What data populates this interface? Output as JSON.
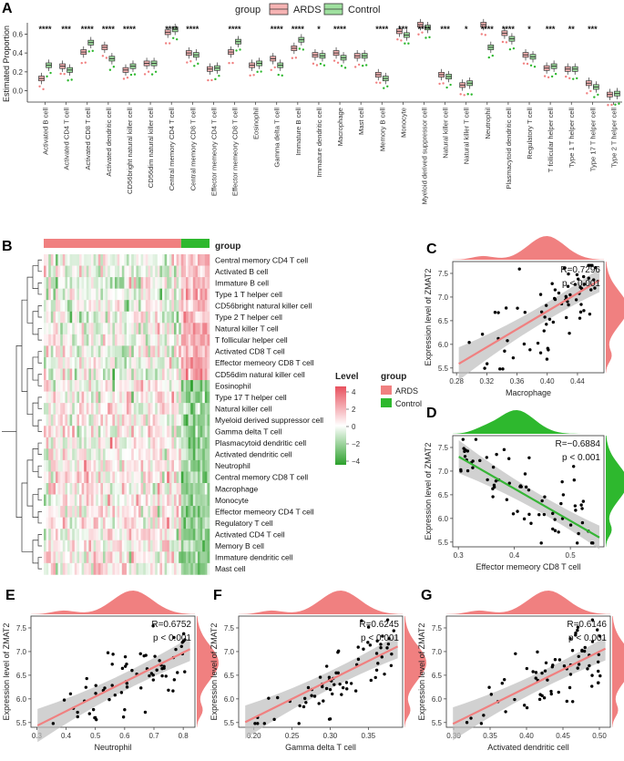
{
  "colors": {
    "ards": "#f08080",
    "control": "#2eb82e",
    "heat_high": "#e8515e",
    "heat_mid": "#ffffff",
    "heat_low": "#2ca02c",
    "box_ards_fill": "#f6b3b3",
    "box_control_fill": "#9fe09f",
    "line": "#f08080",
    "line_d": "#36b536",
    "band": "#bdbdbd"
  },
  "panelA": {
    "label": "A",
    "legend_title": "group",
    "legend_items": [
      "ARDS",
      "Control"
    ],
    "ylabel": "Estimated Proportion",
    "yticks": [
      "0.0",
      "0.2",
      "0.4",
      "0.6"
    ],
    "ylim": [
      -0.12,
      0.72
    ],
    "grid": false,
    "chart_data": {
      "type": "box",
      "categories": [
        "Activated B cell",
        "Activated CD4 T cell",
        "Activated CD8 T cell",
        "Activated dendritic cell",
        "CD56bright natural killer cell",
        "CD56dim natural killer cell",
        "Central memory CD4 T cell",
        "Central memory CD8 T cell",
        "Effector memeory CD4 T cell",
        "Effector memeory CD8 T cell",
        "Eosinophil",
        "Gamma delta T cell",
        "Immature  B cell",
        "Immature dendritic cell",
        "Macrophage",
        "Mast cell",
        "Memory B cell",
        "Monocyte",
        "Myeloid derived suppressor cell",
        "Natural killer cell",
        "Natural killer T cell",
        "Neutrophil",
        "Plasmacytoid dendritic cell",
        "Regulatory T cell",
        "T follicular helper cell",
        "Type 1 T helper cell",
        "Type 17 T helper cell",
        "Type 2 T helper cell"
      ],
      "significance": [
        "****",
        "***",
        "****",
        "****",
        "****",
        "",
        "****",
        "****",
        "",
        "****",
        "",
        "****",
        "****",
        "*",
        "****",
        "",
        "****",
        "***",
        "****",
        "***",
        "*",
        "****",
        "****",
        "*",
        "***",
        "**",
        "***",
        ""
      ],
      "series": [
        {
          "name": "ARDS",
          "medians": [
            0.13,
            0.26,
            0.41,
            0.46,
            0.22,
            0.29,
            0.62,
            0.4,
            0.23,
            0.41,
            0.27,
            0.34,
            0.45,
            0.38,
            0.4,
            0.37,
            0.17,
            0.63,
            0.7,
            0.17,
            0.06,
            0.7,
            0.61,
            0.38,
            0.24,
            0.23,
            0.08,
            -0.04
          ]
        },
        {
          "name": "Control",
          "medians": [
            0.27,
            0.22,
            0.51,
            0.34,
            0.26,
            0.29,
            0.65,
            0.38,
            0.24,
            0.52,
            0.29,
            0.27,
            0.54,
            0.37,
            0.35,
            0.37,
            0.13,
            0.59,
            0.67,
            0.15,
            0.08,
            0.46,
            0.55,
            0.36,
            0.26,
            0.23,
            0.04,
            -0.03
          ]
        }
      ]
    }
  },
  "panelB": {
    "label": "B",
    "group_title": "group",
    "level_title": "Level",
    "level_ticks": [
      "4",
      "2",
      "0",
      "−2",
      "−4"
    ],
    "group_legend": [
      "ARDS",
      "Control"
    ],
    "rows": [
      "Central memory CD4 T cell",
      "Activated B cell",
      "Immature  B cell",
      "Type 1 T helper cell",
      "CD56bright natural killer cell",
      "Type 2 T helper cell",
      "Natural killer T cell",
      "T follicular helper cell",
      "Activated CD8 T cell",
      "Effector memeory CD8 T cell",
      "CD56dim natural killer cell",
      "Eosinophil",
      "Type 17 T helper cell",
      "Natural killer cell",
      "Myeloid derived suppressor cell",
      "Gamma delta T cell",
      "Plasmacytoid dendritic cell",
      "Activated dendritic cell",
      "Neutrophil",
      "Central memory CD8 T cell",
      "Macrophage",
      "Monocyte",
      "Effector memeory CD4 T cell",
      "Regulatory T cell",
      "Activated CD4 T cell",
      "Memory B cell",
      "Immature dendritic cell",
      "Mast cell"
    ],
    "chart_data": {
      "type": "heatmap",
      "n_ards": 58,
      "n_control": 12,
      "value_range": [
        -4,
        4
      ]
    }
  },
  "scatters": [
    {
      "label": "C",
      "xlabel": "Macrophage",
      "ylabel": "Expression level of ZMAT2",
      "R": "R=0.7296",
      "p": "p < 0.001",
      "xlim": [
        0.275,
        0.475
      ],
      "ylim": [
        5.4,
        7.75
      ],
      "xticks": [
        "0.28",
        "0.32",
        "0.36",
        "0.40",
        "0.44"
      ],
      "yticks": [
        "5.5",
        "6.0",
        "6.5",
        "7.0",
        "7.5"
      ],
      "marginal_color": "#f08080",
      "chart_data": {
        "type": "scatter",
        "fit": {
          "slope": 9.5,
          "intercept": 2.9
        }
      }
    },
    {
      "label": "D",
      "xlabel": "Effector memeory CD8 T cell",
      "ylabel": "Expression level of ZMAT2",
      "R": "R=−0.6884",
      "p": "p < 0.001",
      "xlim": [
        0.29,
        0.56
      ],
      "ylim": [
        5.4,
        7.75
      ],
      "xticks": [
        "0.3",
        "0.4",
        "0.5"
      ],
      "yticks": [
        "5.5",
        "6.0",
        "6.5",
        "7.0",
        "7.5"
      ],
      "marginal_color": "#2eb82e",
      "chart_data": {
        "type": "scatter",
        "fit": {
          "slope": -6.8,
          "intercept": 9.35
        }
      }
    },
    {
      "label": "E",
      "xlabel": "Neutrophil",
      "ylabel": "Expression level of ZMAT2",
      "R": "R=0.6752",
      "p": "p < 0.001",
      "xlim": [
        0.28,
        0.84
      ],
      "ylim": [
        5.4,
        7.75
      ],
      "xticks": [
        "0.3",
        "0.4",
        "0.5",
        "0.6",
        "0.7",
        "0.8"
      ],
      "yticks": [
        "5.5",
        "6.0",
        "6.5",
        "7.0",
        "7.5"
      ],
      "marginal_color": "#f08080",
      "chart_data": {
        "type": "scatter",
        "fit": {
          "slope": 3.1,
          "intercept": 4.5
        }
      }
    },
    {
      "label": "F",
      "xlabel": "Gamma delta T cell",
      "ylabel": "Expression level of ZMAT2",
      "R": "R=0.6245",
      "p": "p < 0.001",
      "xlim": [
        0.18,
        0.395
      ],
      "ylim": [
        5.4,
        7.75
      ],
      "xticks": [
        "0.20",
        "0.25",
        "0.30",
        "0.35"
      ],
      "yticks": [
        "5.5",
        "6.0",
        "6.5",
        "7.0",
        "7.5"
      ],
      "marginal_color": "#f08080",
      "chart_data": {
        "type": "scatter",
        "fit": {
          "slope": 8.0,
          "intercept": 4.0
        }
      }
    },
    {
      "label": "G",
      "xlabel": "Activated dendritic cell",
      "ylabel": "Expression level of ZMAT2",
      "R": "R=0.6146",
      "p": "p < 0.001",
      "xlim": [
        0.29,
        0.515
      ],
      "ylim": [
        5.4,
        7.75
      ],
      "xticks": [
        "0.30",
        "0.35",
        "0.40",
        "0.45",
        "0.50"
      ],
      "yticks": [
        "5.5",
        "6.0",
        "6.5",
        "7.0",
        "7.5"
      ],
      "marginal_color": "#f08080",
      "chart_data": {
        "type": "scatter",
        "fit": {
          "slope": 7.6,
          "intercept": 3.2
        }
      }
    }
  ]
}
